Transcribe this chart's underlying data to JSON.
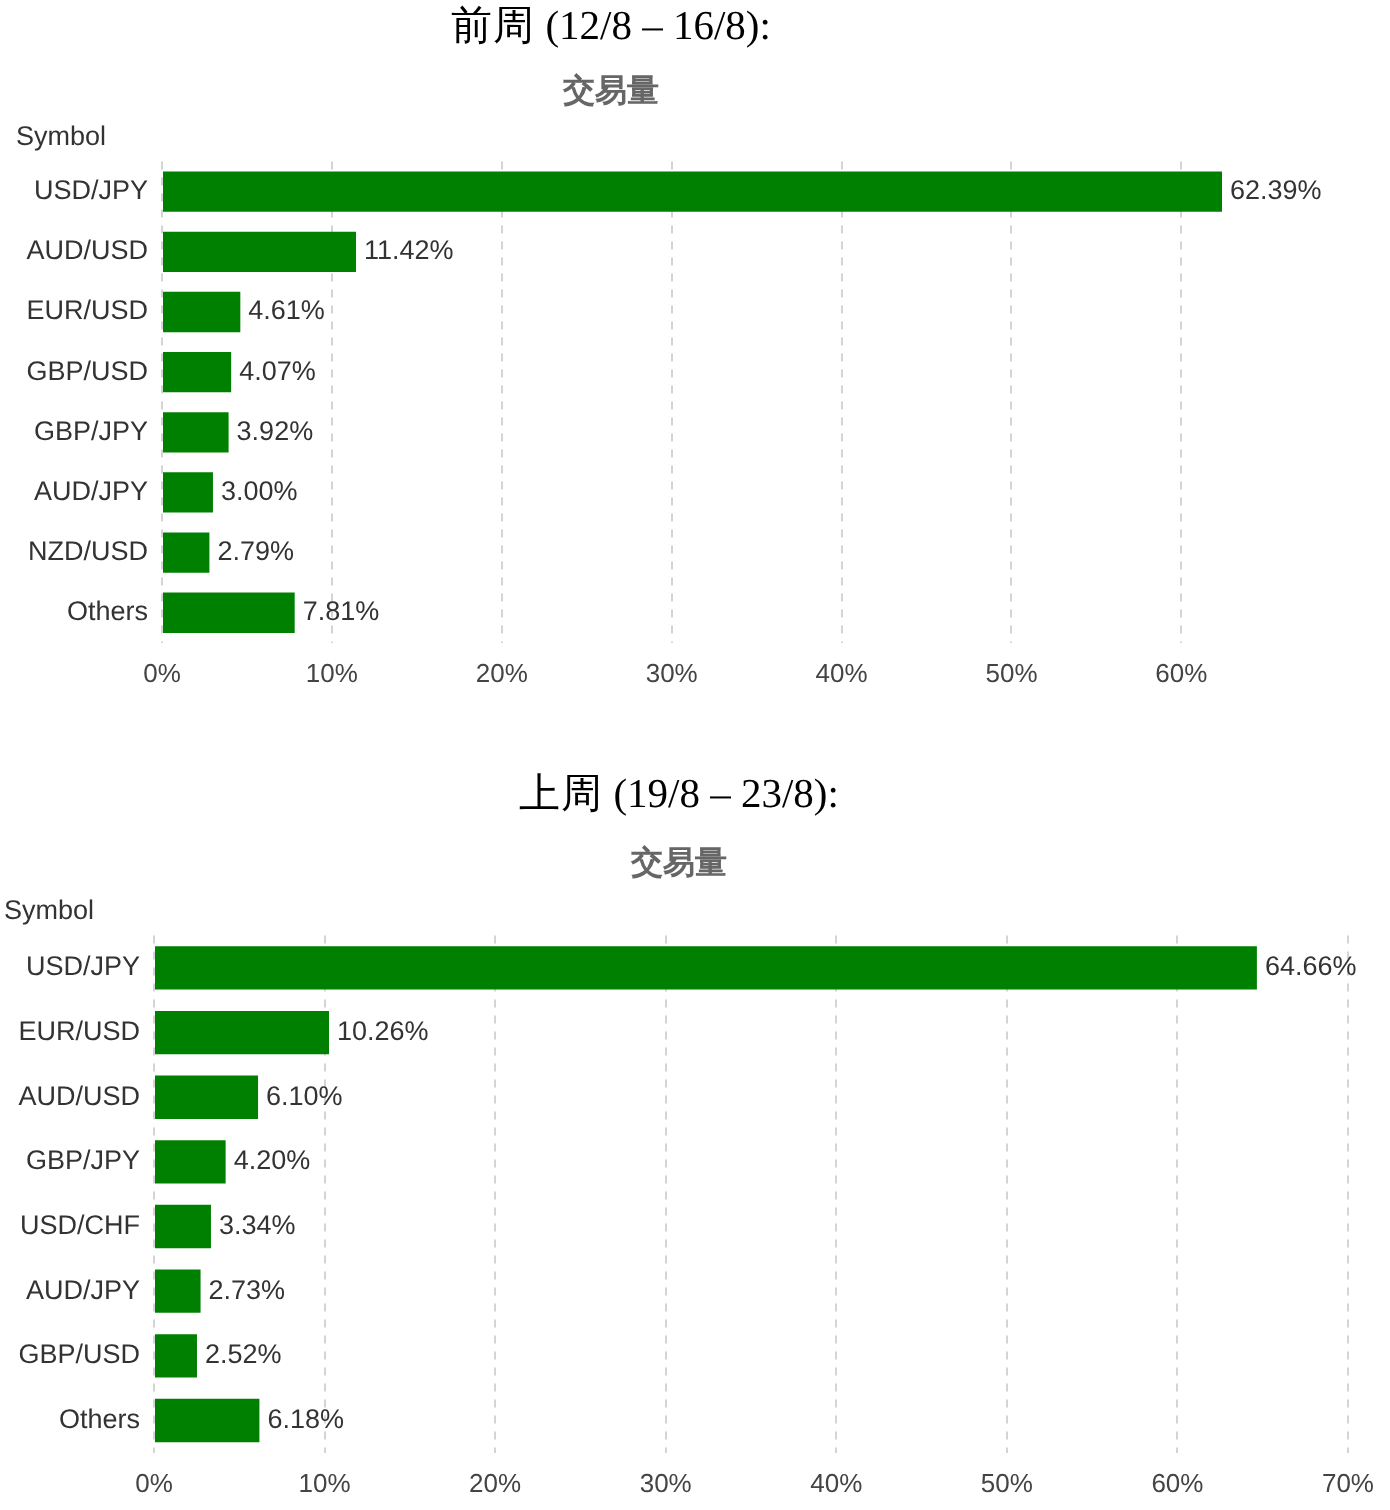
{
  "chart_data": [
    {
      "type": "bar",
      "orientation": "horizontal",
      "title": "前周 (12/8 – 16/8):",
      "subtitle": "交易量",
      "ylabel": "Symbol",
      "categories": [
        "USD/JPY",
        "AUD/USD",
        "EUR/USD",
        "GBP/USD",
        "GBP/JPY",
        "AUD/JPY",
        "NZD/USD",
        "Others"
      ],
      "values": [
        62.39,
        11.42,
        4.61,
        4.07,
        3.92,
        3.0,
        2.79,
        7.81
      ],
      "value_labels": [
        "62.39%",
        "11.42%",
        "4.61%",
        "4.07%",
        "3.92%",
        "3.00%",
        "2.79%",
        "7.81%"
      ],
      "color": "#008000",
      "xlim": [
        0,
        62.39
      ],
      "xticks": [
        {
          "value": 0,
          "label": "0%"
        },
        {
          "value": 10,
          "label": "10%"
        },
        {
          "value": 20,
          "label": "20%"
        },
        {
          "value": 30,
          "label": "30%"
        },
        {
          "value": 40,
          "label": "40%"
        },
        {
          "value": 50,
          "label": "50%"
        },
        {
          "value": 60,
          "label": "60%"
        }
      ],
      "grid": "x"
    },
    {
      "type": "bar",
      "orientation": "horizontal",
      "title": "上周 (19/8 – 23/8):",
      "subtitle": "交易量",
      "ylabel": "Symbol",
      "categories": [
        "USD/JPY",
        "EUR/USD",
        "AUD/USD",
        "GBP/JPY",
        "USD/CHF",
        "AUD/JPY",
        "GBP/USD",
        "Others"
      ],
      "values": [
        64.66,
        10.26,
        6.1,
        4.2,
        3.34,
        2.73,
        2.52,
        6.18
      ],
      "value_labels": [
        "64.66%",
        "10.26%",
        "6.10%",
        "4.20%",
        "3.34%",
        "2.73%",
        "2.52%",
        "6.18%"
      ],
      "color": "#008000",
      "xlim": [
        0,
        70
      ],
      "xticks": [
        {
          "value": 0,
          "label": "0%"
        },
        {
          "value": 10,
          "label": "10%"
        },
        {
          "value": 20,
          "label": "20%"
        },
        {
          "value": 30,
          "label": "30%"
        },
        {
          "value": 40,
          "label": "40%"
        },
        {
          "value": 50,
          "label": "50%"
        },
        {
          "value": 60,
          "label": "60%"
        },
        {
          "value": 70,
          "label": "70%"
        }
      ],
      "grid": "x"
    }
  ]
}
